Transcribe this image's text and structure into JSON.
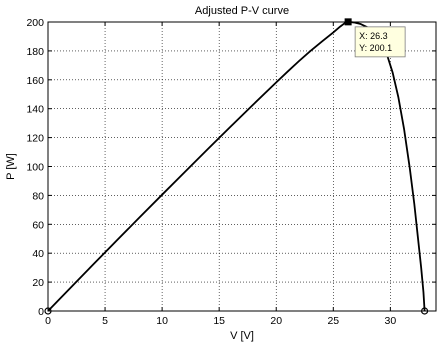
{
  "chart_data": {
    "type": "line",
    "title": "Adjusted P-V curve",
    "xlabel": "V [V]",
    "ylabel": "P [W]",
    "xlim": [
      0,
      34
    ],
    "ylim": [
      0,
      200
    ],
    "xticks": [
      0,
      5,
      10,
      15,
      20,
      25,
      30
    ],
    "yticks": [
      0,
      20,
      40,
      60,
      80,
      100,
      120,
      140,
      160,
      180,
      200
    ],
    "grid": true,
    "series": [
      {
        "color": "#000000",
        "points": [
          [
            0,
            0
          ],
          [
            2,
            16.3
          ],
          [
            4,
            32.5
          ],
          [
            6,
            48.6
          ],
          [
            8,
            64.6
          ],
          [
            10,
            80.5
          ],
          [
            12,
            96.3
          ],
          [
            14,
            112
          ],
          [
            16,
            127.6
          ],
          [
            18,
            143
          ],
          [
            20,
            158.2
          ],
          [
            21,
            165.7
          ],
          [
            22,
            173
          ],
          [
            23,
            180
          ],
          [
            24,
            186.5
          ],
          [
            25,
            192.8
          ],
          [
            25.6,
            196.8
          ],
          [
            26,
            199.2
          ],
          [
            26.3,
            200.1
          ],
          [
            26.8,
            199.7
          ],
          [
            27.4,
            198.6
          ],
          [
            28,
            196.3
          ],
          [
            28.6,
            192.5
          ],
          [
            29.2,
            186
          ],
          [
            29.7,
            177.5
          ],
          [
            30.2,
            165
          ],
          [
            30.7,
            148
          ],
          [
            31.2,
            126
          ],
          [
            31.7,
            99
          ],
          [
            32.1,
            74
          ],
          [
            32.4,
            52
          ],
          [
            32.7,
            30
          ],
          [
            32.9,
            13
          ],
          [
            33.0,
            0
          ]
        ]
      }
    ],
    "markers": [
      {
        "x": 0,
        "y": 0,
        "shape": "circle"
      },
      {
        "x": 33.0,
        "y": 0,
        "shape": "circle"
      },
      {
        "x": 26.3,
        "y": 200.1,
        "shape": "square"
      }
    ],
    "datatip": {
      "x": 26.3,
      "y": 200.1,
      "line1": "X: 26.3",
      "line2": "Y: 200.1",
      "background": "#ffffe0"
    }
  }
}
